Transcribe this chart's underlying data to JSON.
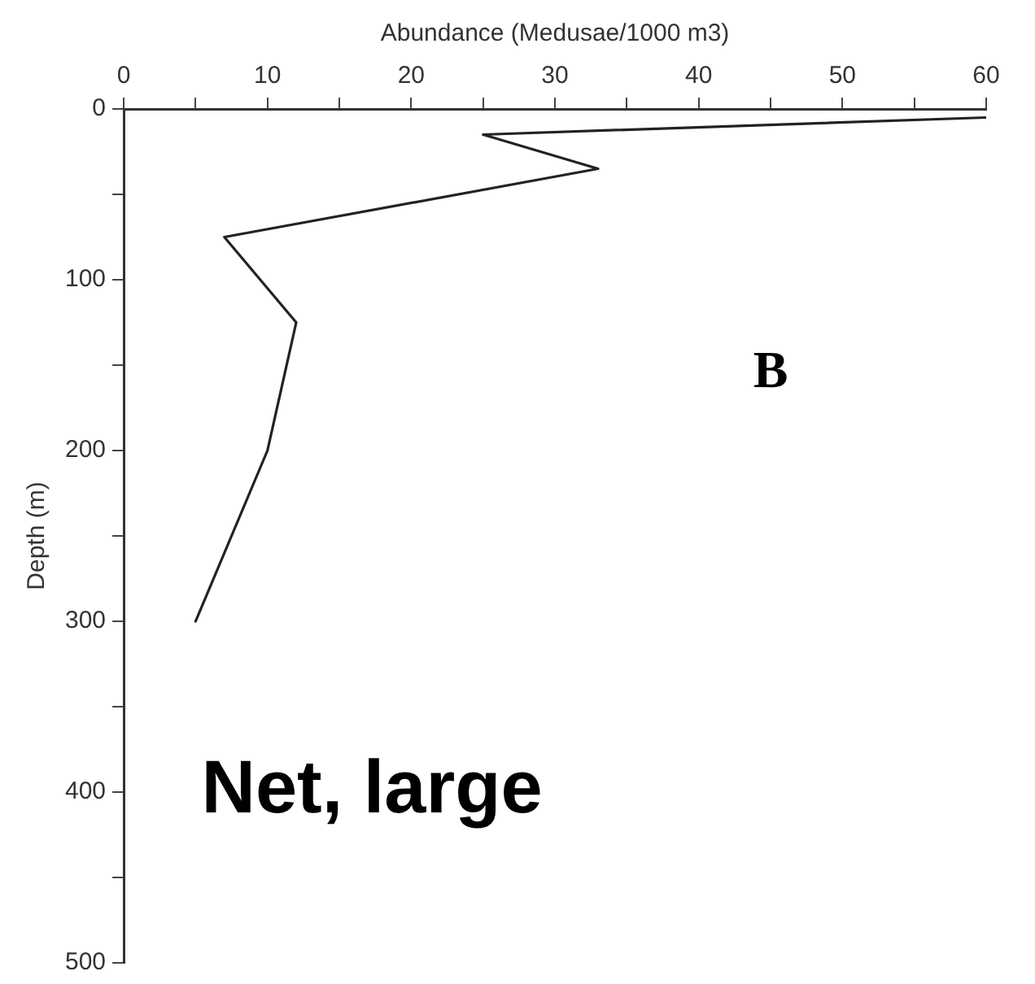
{
  "chart_data": {
    "type": "line",
    "xlabel": "Abundance (Medusae/1000 m3)",
    "ylabel": "Depth (m)",
    "annotations": [
      "B",
      "Net, large"
    ],
    "x": [
      60,
      25,
      33,
      7,
      12,
      10,
      5
    ],
    "series": [
      {
        "color": "#222222",
        "values": [
          5,
          15,
          35,
          75,
          125,
          200,
          300
        ]
      }
    ],
    "xlim": [
      0,
      60
    ],
    "xticks": [
      0,
      {
        "value": 5,
        "label": null
      },
      10,
      {
        "value": 15,
        "label": null
      },
      20,
      {
        "value": 25,
        "label": null
      },
      30,
      {
        "value": 35,
        "label": null
      },
      40,
      {
        "value": 45,
        "label": null
      },
      50,
      {
        "value": 55,
        "label": null
      },
      60
    ],
    "ylim": [
      500,
      0
    ],
    "yticks": [
      0,
      {
        "value": 50,
        "label": null
      },
      100,
      {
        "value": 150,
        "label": null
      },
      200,
      {
        "value": 250,
        "label": null
      },
      300,
      {
        "value": 350,
        "label": null
      },
      400,
      {
        "value": 450,
        "label": null
      },
      500
    ],
    "grid": false,
    "legend": false,
    "marker": "none",
    "line_style": "solid"
  }
}
